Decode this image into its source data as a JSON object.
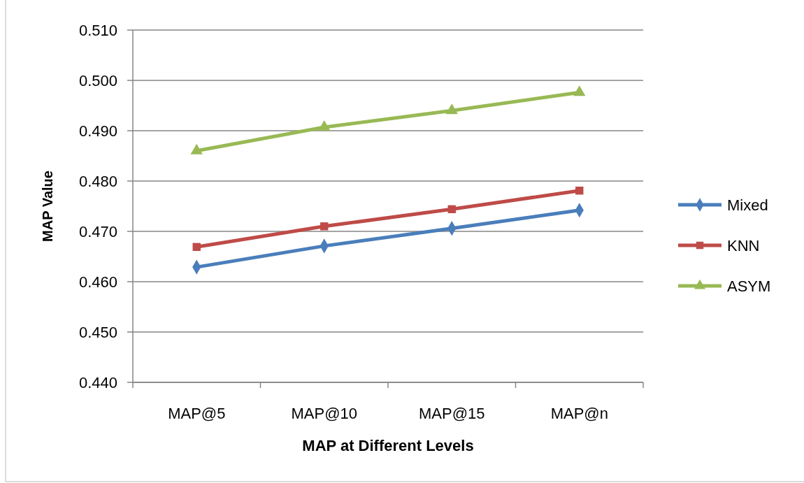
{
  "chart_data": {
    "type": "line",
    "xlabel": "MAP at Different Levels",
    "ylabel": "MAP Value",
    "categories": [
      "MAP@5",
      "MAP@10",
      "MAP@15",
      "MAP@n"
    ],
    "series": [
      {
        "name": "Mixed",
        "color": "#4a7ebb",
        "marker": "diamond",
        "values": [
          0.4629,
          0.4671,
          0.4706,
          0.4742
        ]
      },
      {
        "name": "KNN",
        "color": "#be4b48",
        "marker": "square",
        "values": [
          0.4669,
          0.471,
          0.4744,
          0.4781
        ]
      },
      {
        "name": "ASYM",
        "color": "#98b954",
        "marker": "triangle",
        "values": [
          0.486,
          0.4907,
          0.494,
          0.4976
        ]
      }
    ],
    "ylim": [
      0.44,
      0.51
    ],
    "yticks": [
      {
        "value": 0.44,
        "label": "0.440"
      },
      {
        "value": 0.45,
        "label": "0.450"
      },
      {
        "value": 0.46,
        "label": "0.460"
      },
      {
        "value": 0.47,
        "label": "0.470"
      },
      {
        "value": 0.48,
        "label": "0.480"
      },
      {
        "value": 0.49,
        "label": "0.490"
      },
      {
        "value": 0.5,
        "label": "0.500"
      },
      {
        "value": 0.51,
        "label": "0.510"
      }
    ],
    "grid": "y",
    "legend": "right"
  }
}
